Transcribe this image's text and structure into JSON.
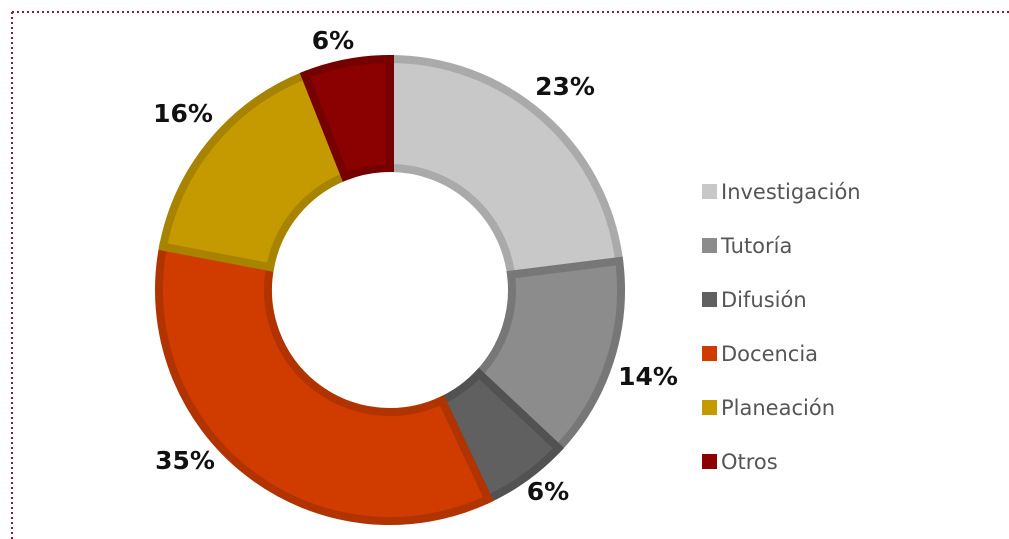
{
  "chart_data": {
    "type": "donut",
    "categories": [
      "Investigación",
      "Tutoría",
      "Difusión",
      "Docencia",
      "Planeación",
      "Otros"
    ],
    "values": [
      23,
      14,
      6,
      35,
      16,
      6
    ],
    "value_labels": [
      "23%",
      "14%",
      "6%",
      "35%",
      "16%",
      "6%"
    ],
    "colors": [
      "#c8c8c8",
      "#8c8c8c",
      "#606060",
      "#d03c00",
      "#c59a00",
      "#8b0000"
    ],
    "legend": "right"
  }
}
